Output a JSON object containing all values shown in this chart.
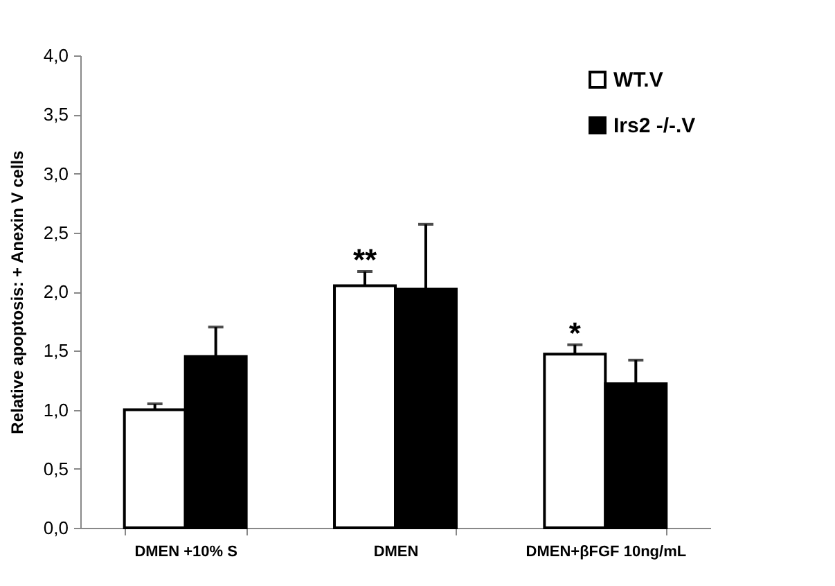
{
  "chart_data": {
    "type": "bar",
    "ylabel": "Relative apoptosis: + Anexin V cells",
    "categories": [
      "DMEN +10% S",
      "DMEN",
      "DMEN+βFGF 10ng/mL"
    ],
    "series": [
      {
        "name": "WT.V",
        "color": "#ffffff",
        "values": [
          1.0,
          2.05,
          1.47
        ],
        "errors": [
          0.05,
          0.12,
          0.08
        ],
        "value_labels": [
          null,
          "**",
          "*"
        ]
      },
      {
        "name": "Irs2 -/-.V",
        "color": "#000000",
        "values": [
          1.45,
          2.02,
          1.22
        ],
        "errors": [
          0.25,
          0.55,
          0.2
        ]
      }
    ],
    "ylim": [
      0,
      4
    ],
    "yticks": [
      {
        "value": 0,
        "label": "0,0"
      },
      {
        "value": 0.5,
        "label": "0,5"
      },
      {
        "value": 1,
        "label": "1,0"
      },
      {
        "value": 1.5,
        "label": "1,5"
      },
      {
        "value": 2,
        "label": "2,0"
      },
      {
        "value": 2.5,
        "label": "2,5"
      },
      {
        "value": 3,
        "label": "3,0"
      },
      {
        "value": 3.5,
        "label": "3,5"
      },
      {
        "value": 4,
        "label": "4,0"
      }
    ],
    "legend": "top right",
    "grid": false
  }
}
